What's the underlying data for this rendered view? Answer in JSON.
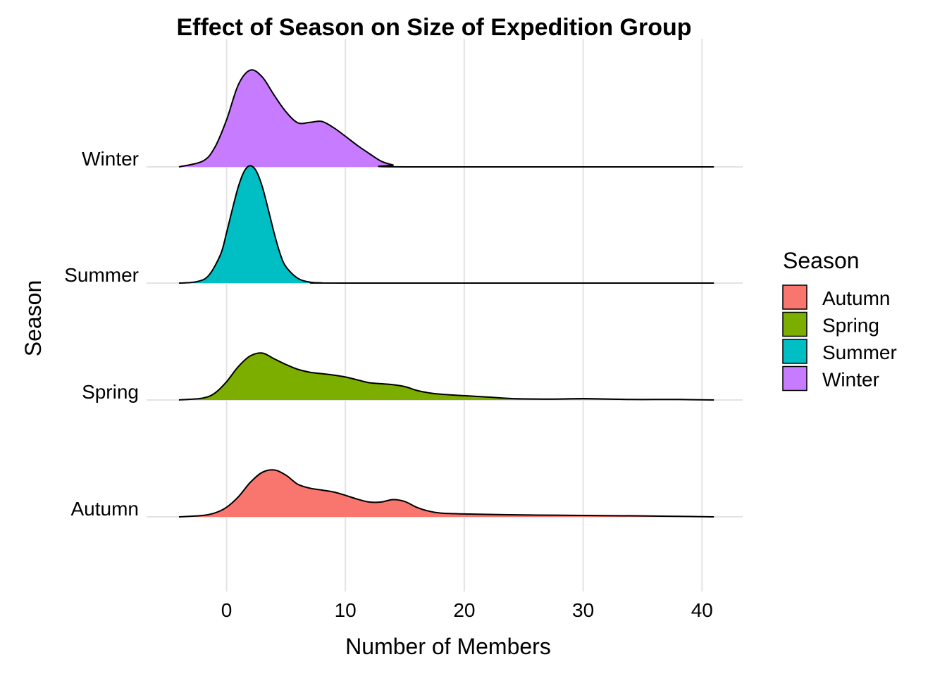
{
  "chart_data": {
    "type": "ridgeline",
    "title": "Effect of Season on Size of Expedition Group",
    "xlabel": "Number of Members",
    "ylabel": "Season",
    "xlim": [
      -4,
      41
    ],
    "x_ticks": [
      0,
      10,
      20,
      30,
      40
    ],
    "grid": true,
    "legend": {
      "title": "Season",
      "position": "right",
      "items": [
        "Autumn",
        "Spring",
        "Summer",
        "Winter"
      ]
    },
    "categories": [
      "Autumn",
      "Spring",
      "Summer",
      "Winter"
    ],
    "series": [
      {
        "name": "Autumn",
        "color": "#F8766D",
        "x": [
          -4,
          -2,
          -1,
          0,
          1,
          2,
          3,
          4,
          5,
          6,
          7,
          8,
          9,
          10,
          11,
          12,
          13,
          14,
          15,
          16,
          17,
          18,
          20,
          25,
          30,
          35,
          38,
          41
        ],
        "y": [
          0,
          0.03,
          0.08,
          0.2,
          0.42,
          0.72,
          0.93,
          0.98,
          0.87,
          0.68,
          0.6,
          0.56,
          0.52,
          0.45,
          0.37,
          0.31,
          0.31,
          0.36,
          0.32,
          0.2,
          0.12,
          0.08,
          0.06,
          0.04,
          0.03,
          0.02,
          0.01,
          0
        ]
      },
      {
        "name": "Spring",
        "color": "#7CAE00",
        "x": [
          -4,
          -2,
          -1,
          0,
          1,
          2,
          3,
          4,
          5,
          6,
          7,
          8,
          9,
          10,
          11,
          12,
          13,
          14,
          15,
          16,
          17,
          18,
          20,
          22,
          24,
          26,
          28,
          30,
          32,
          34,
          36,
          38,
          41
        ],
        "y": [
          0,
          0.04,
          0.14,
          0.38,
          0.7,
          0.92,
          0.98,
          0.86,
          0.74,
          0.64,
          0.58,
          0.55,
          0.52,
          0.48,
          0.42,
          0.36,
          0.34,
          0.32,
          0.28,
          0.2,
          0.15,
          0.12,
          0.09,
          0.06,
          0.03,
          0.02,
          0.02,
          0.03,
          0.02,
          0.01,
          0.01,
          0.01,
          0
        ]
      },
      {
        "name": "Summer",
        "color": "#00BFC4",
        "x": [
          -4,
          -2.5,
          -1.5,
          -0.5,
          0,
          0.5,
          1,
          1.5,
          2,
          2.5,
          3,
          3.5,
          4,
          4.5,
          5,
          6,
          7,
          8,
          10,
          41
        ],
        "y": [
          0,
          0.03,
          0.16,
          0.6,
          1.05,
          1.55,
          2.02,
          2.34,
          2.45,
          2.34,
          2.02,
          1.55,
          1.05,
          0.62,
          0.34,
          0.1,
          0.02,
          0.005,
          0,
          0
        ]
      },
      {
        "name": "Winter",
        "color": "#C77CFF",
        "x": [
          -4,
          -2,
          -1,
          0,
          1,
          2,
          3,
          4,
          5,
          6,
          7,
          8,
          9,
          10,
          11,
          12,
          13,
          14,
          15,
          41
        ],
        "y": [
          0,
          0.12,
          0.4,
          0.98,
          1.72,
          2.02,
          1.88,
          1.5,
          1.15,
          0.92,
          0.93,
          0.95,
          0.82,
          0.64,
          0.45,
          0.28,
          0.12,
          0.04,
          0,
          0
        ]
      }
    ]
  }
}
